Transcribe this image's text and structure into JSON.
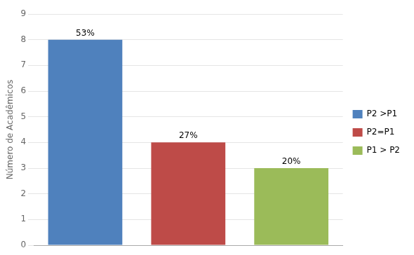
{
  "chart_data": {
    "type": "bar",
    "categories": [
      "P2 >P1",
      "P2=P1",
      "P1 > P2"
    ],
    "values": [
      8,
      4,
      3
    ],
    "colors": [
      "#4F81BD",
      "#BE4B48",
      "#9BBB59"
    ],
    "annotations": [
      "53%",
      "27%",
      "20%"
    ],
    "ylabel": "Número de Acadêmicos",
    "ylim": [
      0,
      9
    ],
    "yticks": [
      0,
      1,
      2,
      3,
      4,
      5,
      6,
      7,
      8,
      9
    ],
    "grid": true,
    "legend": "right",
    "tick_labels": "y"
  }
}
